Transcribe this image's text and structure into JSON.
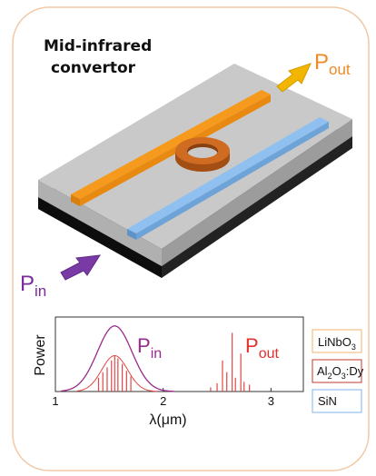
{
  "title": {
    "line1": "Mid-infrared",
    "line2": "convertor"
  },
  "labels": {
    "p_out": {
      "base": "P",
      "sub": "out"
    },
    "p_in": {
      "base": "P",
      "sub": "in"
    }
  },
  "colors": {
    "frame": "#f2c9a6",
    "orange_waveguide": "#f59a1c",
    "blue_waveguide": "#7fb3ea",
    "ring": "#c8641e",
    "arrow_out": "#f2b500",
    "arrow_in": "#7a3aa6",
    "chip_top": "#c9c9c9",
    "chip_side": "#a8a8a8",
    "chip_base": "#1a1a1a",
    "p_out_text": "#f08a24",
    "p_in_text": "#7a2a9a",
    "spectrum_purple": "#9a2a8a",
    "spectrum_red": "#e04646",
    "plot_p_out_text": "#e03030"
  },
  "chart_data": {
    "type": "line",
    "xlabel": "λ(μm)",
    "ylabel": "Power",
    "xlim": [
      1,
      3.3
    ],
    "xticks": [
      "1",
      "2",
      "3"
    ],
    "series": [
      {
        "name": "P_in",
        "label": {
          "base": "P",
          "sub": "in"
        },
        "kind": "gaussian envelope",
        "center": 1.55,
        "peak": 0.95
      },
      {
        "name": "P_out",
        "label": {
          "base": "P",
          "sub": "out"
        },
        "kind": "emission lines",
        "lines_near_1_5": [
          {
            "x": 1.4,
            "y": 0.2
          },
          {
            "x": 1.44,
            "y": 0.28
          },
          {
            "x": 1.48,
            "y": 0.35
          },
          {
            "x": 1.52,
            "y": 0.45
          },
          {
            "x": 1.55,
            "y": 0.52
          },
          {
            "x": 1.58,
            "y": 0.48
          },
          {
            "x": 1.62,
            "y": 0.4
          },
          {
            "x": 1.66,
            "y": 0.3
          },
          {
            "x": 1.7,
            "y": 0.22
          }
        ],
        "lines_near_2_7": [
          {
            "x": 2.44,
            "y": 0.06
          },
          {
            "x": 2.5,
            "y": 0.12
          },
          {
            "x": 2.55,
            "y": 0.45
          },
          {
            "x": 2.59,
            "y": 0.28
          },
          {
            "x": 2.64,
            "y": 0.85
          },
          {
            "x": 2.67,
            "y": 0.2
          },
          {
            "x": 2.72,
            "y": 0.55
          },
          {
            "x": 2.75,
            "y": 0.14
          },
          {
            "x": 2.8,
            "y": 0.1
          }
        ]
      }
    ]
  },
  "legend": [
    {
      "name": "LiNbO3",
      "parts": [
        {
          "t": "LiNbO",
          "s": ""
        },
        {
          "t": "3",
          "s": "sub"
        }
      ],
      "border": "#f2b36b"
    },
    {
      "name": "Al2O3:Dy",
      "parts": [
        {
          "t": "Al",
          "s": ""
        },
        {
          "t": "2",
          "s": "sub"
        },
        {
          "t": "O",
          "s": ""
        },
        {
          "t": "3",
          "s": "sub"
        },
        {
          "t": ":Dy",
          "s": ""
        }
      ],
      "border": "#c0392b"
    },
    {
      "name": "SiN",
      "parts": [
        {
          "t": "SiN",
          "s": ""
        }
      ],
      "border": "#7fb3ea"
    }
  ]
}
